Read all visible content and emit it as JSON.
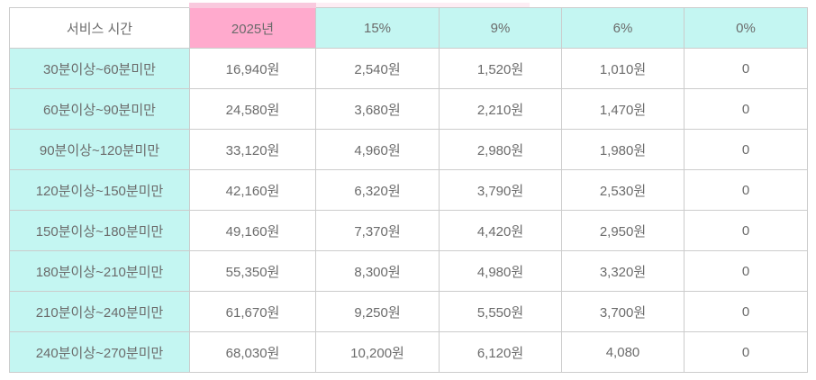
{
  "chart_data": {
    "type": "table",
    "title": "",
    "columns": [
      "서비스 시간",
      "2025년",
      "15%",
      "9%",
      "6%",
      "0%"
    ],
    "rows": [
      [
        "30분이상~60분미만",
        "16,940원",
        "2,540원",
        "1,520원",
        "1,010원",
        "0"
      ],
      [
        "60분이상~90분미만",
        "24,580원",
        "3,680원",
        "2,210원",
        "1,470원",
        "0"
      ],
      [
        "90분이상~120분미만",
        "33,120원",
        "4,960원",
        "2,980원",
        "1,980원",
        "0"
      ],
      [
        "120분이상~150분미만",
        "42,160원",
        "6,320원",
        "3,790원",
        "2,530원",
        "0"
      ],
      [
        "150분이상~180분미만",
        "49,160원",
        "7,370원",
        "4,420원",
        "2,950원",
        "0"
      ],
      [
        "180분이상~210분미만",
        "55,350원",
        "8,300원",
        "4,980원",
        "3,320원",
        "0"
      ],
      [
        "210분이상~240분미만",
        "61,670원",
        "9,250원",
        "5,550원",
        "3,700원",
        "0"
      ],
      [
        "240분이상~270분미만",
        "68,030원",
        "10,200원",
        "6,120원",
        "4,080",
        "0"
      ]
    ],
    "layout": {
      "header_column_backgrounds": [
        "white",
        "pink",
        "cyan",
        "cyan",
        "cyan",
        "cyan"
      ],
      "first_column_background": "cyan",
      "grid": true
    }
  },
  "colors": {
    "highlight_pink": "#ffaacd",
    "highlight_cyan": "#c4f6f2",
    "border": "#cccccc",
    "outer_border": "#b9b9b9",
    "text": "#6b6b6b",
    "accent_strip": "#f9c9de"
  }
}
